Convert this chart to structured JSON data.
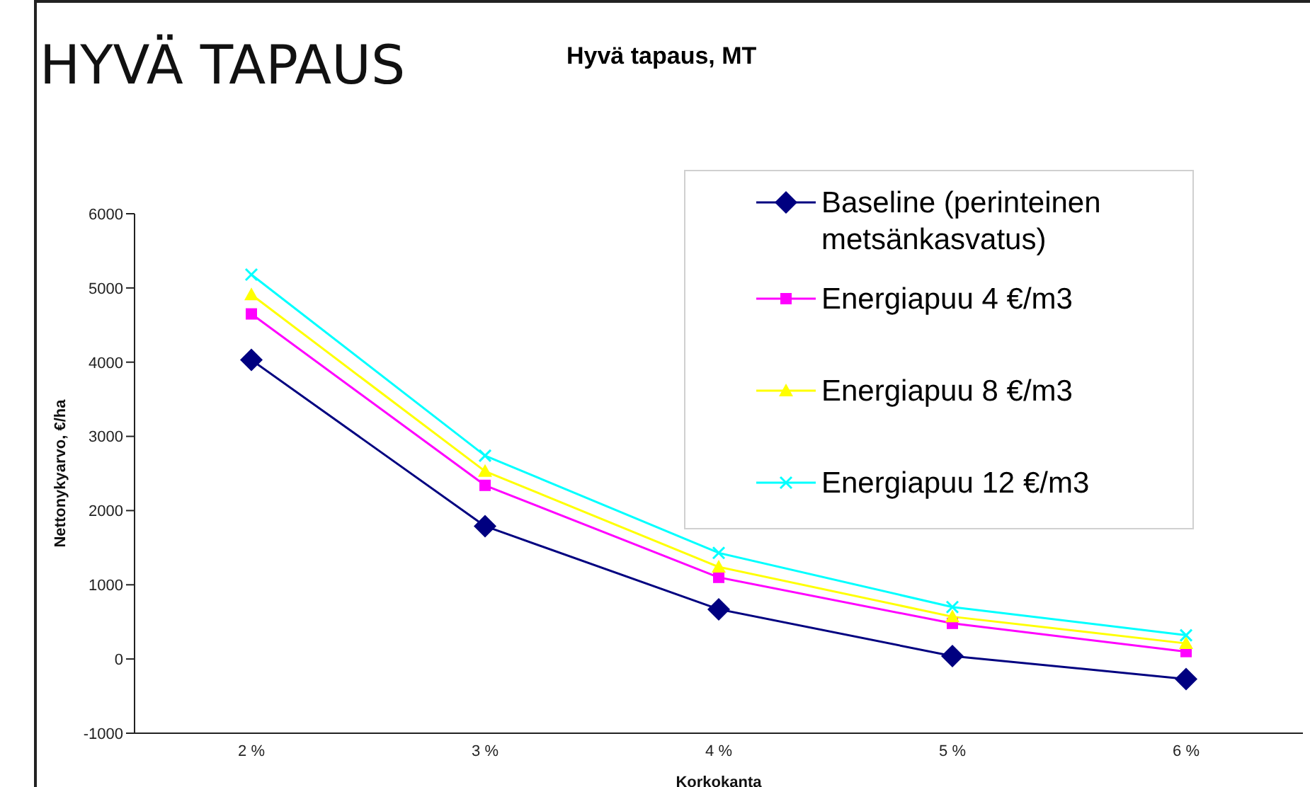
{
  "chart_data": {
    "type": "line",
    "title": "HYVÄ TAPAUS",
    "subtitle": "Hyvä tapaus, MT",
    "xlabel": "Korkokanta",
    "ylabel": "Nettonykyarvo, €/ha",
    "categories": [
      "2 %",
      "3 %",
      "4 %",
      "5 %",
      "6 %"
    ],
    "series": [
      {
        "name": "Baseline (perinteinen metsänkasvatus)",
        "color": "#000080",
        "marker": "diamond",
        "values": [
          4030,
          1790,
          670,
          40,
          -270
        ]
      },
      {
        "name": "Energiapuu 4 €/m3",
        "color": "#ff00ff",
        "marker": "square",
        "values": [
          4650,
          2340,
          1100,
          480,
          100
        ]
      },
      {
        "name": "Energiapuu 8 €/m3",
        "color": "#ffff00",
        "marker": "triangle",
        "values": [
          4910,
          2530,
          1240,
          570,
          210
        ]
      },
      {
        "name": "Energiapuu 12 €/m3",
        "color": "#00ffff",
        "marker": "cross",
        "values": [
          5180,
          2740,
          1430,
          700,
          320
        ]
      }
    ],
    "ylim": [
      -1000,
      6000
    ],
    "yticks": [
      -1000,
      0,
      1000,
      2000,
      3000,
      4000,
      5000,
      6000
    ],
    "grid": false,
    "legend": "top right"
  }
}
